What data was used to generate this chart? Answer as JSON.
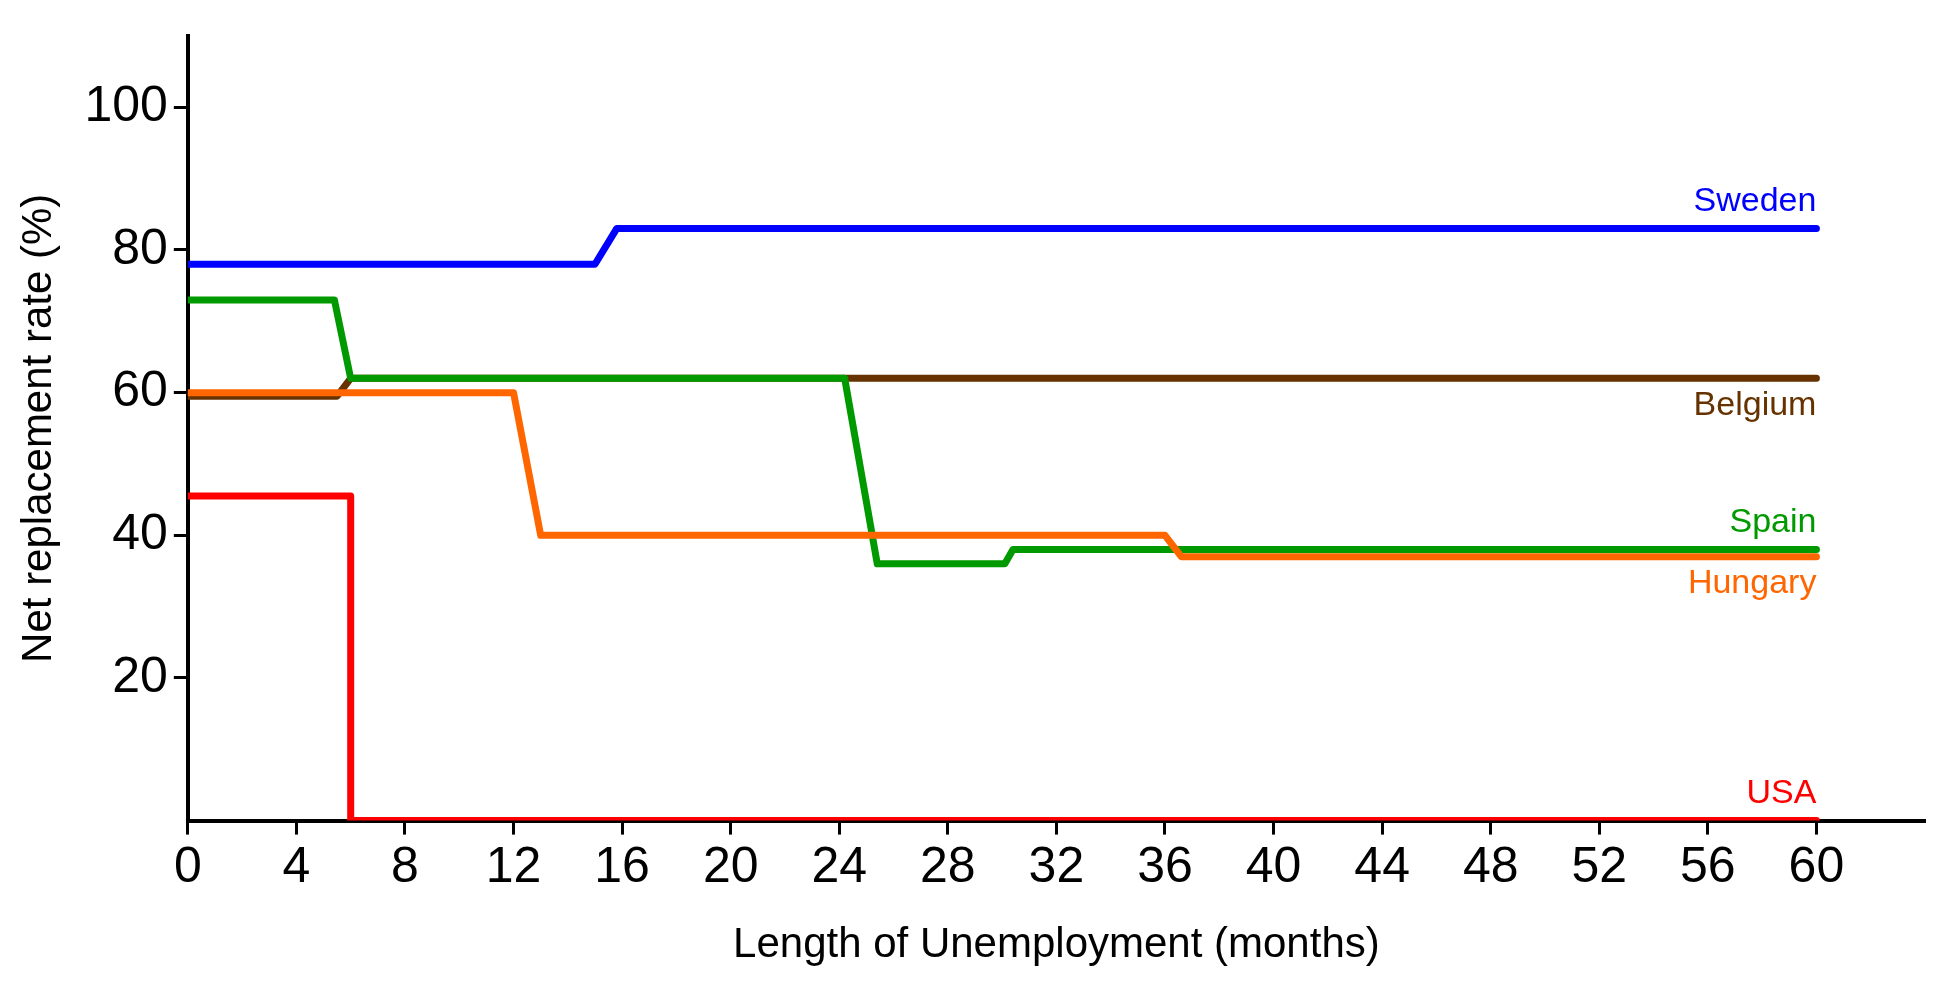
{
  "chart_data": {
    "type": "line",
    "xlabel": "Length of Unemployment (months)",
    "ylabel": "Net replacement rate (%)",
    "xlim": [
      0,
      64
    ],
    "xticks": [
      0,
      4,
      8,
      12,
      16,
      20,
      24,
      28,
      32,
      36,
      40,
      44,
      48,
      52,
      56,
      60
    ],
    "ylim": [
      0,
      110
    ],
    "yticks": [
      20,
      40,
      60,
      80,
      100
    ],
    "grid": false,
    "legend": false,
    "series": [
      {
        "name": "Sweden",
        "color": "#0000ff",
        "x": [
          0,
          15,
          15.8,
          60
        ],
        "values": [
          78,
          78,
          83,
          83
        ]
      },
      {
        "name": "Belgium",
        "color": "#663300",
        "x": [
          0,
          5.5,
          6,
          60
        ],
        "values": [
          59.5,
          59.5,
          62,
          62
        ]
      },
      {
        "name": "Spain",
        "color": "#009900",
        "x": [
          0,
          5.4,
          6,
          24.2,
          25.4,
          30.1,
          30.4,
          60
        ],
        "values": [
          73,
          73,
          62,
          62,
          36,
          36,
          38,
          38
        ]
      },
      {
        "name": "Hungary",
        "color": "#ff6600",
        "x": [
          0,
          12,
          13,
          36,
          36.6,
          60
        ],
        "values": [
          60,
          60,
          40,
          40,
          37,
          37
        ]
      },
      {
        "name": "USA",
        "color": "#ff0000",
        "x": [
          0,
          6,
          6,
          60
        ],
        "values": [
          45.5,
          45.5,
          0,
          0
        ]
      }
    ]
  }
}
